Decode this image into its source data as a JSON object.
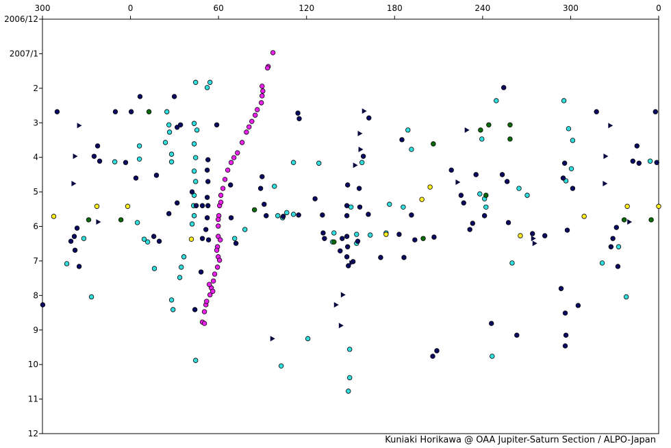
{
  "chart_data": {
    "type": "scatter",
    "footer": "Kuniaki Horikawa @ OAA Jupiter-Saturn Section / ALPO-Japan",
    "xlim": [
      -60,
      360
    ],
    "xticks": [
      {
        "value": -60,
        "label": "300"
      },
      0,
      60,
      120,
      180,
      240,
      300,
      {
        "value": 360,
        "label": "0"
      }
    ],
    "ylim": [
      0,
      12
    ],
    "y_reversed": true,
    "yticks": [
      {
        "value": 0,
        "label": "2006/12"
      },
      {
        "value": 1,
        "label": "2007/1"
      },
      2,
      3,
      4,
      5,
      6,
      7,
      8,
      9,
      10,
      11,
      12
    ],
    "grid": false,
    "series": [
      {
        "color": "#ee22ee",
        "marker": "circle",
        "x": [
          97.1,
          93.9,
          93.4,
          89.7,
          90.2,
          89.7,
          89.2,
          86.4,
          85.0,
          82.7,
          80.8,
          79.0,
          76.1,
          72.9,
          70.5,
          68.6,
          66.3,
          64.4,
          63.0,
          61.6,
          60.7,
          60.2,
          59.8,
          59.8,
          59.3,
          59.8,
          59.3,
          57.4,
          56.5,
          55.1,
          54.2,
          51.4,
          50.4,
          49.0,
          50.4,
          61.6,
          59.8,
          61.2,
          58.8,
          60.7,
          53.7,
          56.1,
          51.9
        ],
        "values": [
          0.97,
          1.37,
          1.41,
          1.94,
          2.08,
          2.22,
          2.42,
          2.62,
          2.78,
          2.96,
          3.12,
          3.27,
          3.57,
          3.87,
          4.01,
          4.15,
          4.37,
          4.64,
          4.9,
          5.1,
          5.4,
          5.69,
          5.99,
          6.29,
          6.59,
          6.88,
          7.18,
          7.38,
          7.58,
          7.78,
          7.98,
          8.27,
          8.47,
          8.77,
          8.81,
          5.3,
          5.8,
          6.39,
          6.69,
          6.98,
          7.68,
          7.88,
          8.17
        ]
      },
      {
        "color": "#33dddd",
        "marker": "circle",
        "x": [
          44.4,
          54.2,
          52.3,
          24.8,
          26.2,
          26.6,
          23.8,
          28.0,
          28.0,
          43.4,
          45.3,
          43.4,
          44.4,
          43.4,
          44.4,
          43.4,
          43.0,
          43.4,
          42.0,
          6.1,
          -10.7,
          4.7,
          9.3,
          11.7,
          16.3,
          6.1,
          -31.8,
          -43.4,
          -26.6,
          36.4,
          34.6,
          33.6,
          28.0,
          29.0,
          44.4,
          71.0,
          78.0,
          98.1,
          100.4,
          103.7,
          106.5,
          111.1,
          111.1,
          128.4,
          102.7,
          120.9,
          138.7,
          137.7,
          154.1,
          154.1,
          150.3,
          149.4,
          149.4,
          148.5,
          157.8,
          163.4,
          176.5,
          189.1,
          191.5,
          185.9,
          174.2,
          249.3,
          239.5,
          238.1,
          241.3,
          242.3,
          264.8,
          270.4,
          260.1,
          246.5,
          295.4,
          298.6,
          301.4,
          300.5,
          296.8,
          321.5,
          332.7,
          337.9,
          354.2
        ],
        "values": [
          1.83,
          1.83,
          1.98,
          2.68,
          3.06,
          3.27,
          3.57,
          3.91,
          4.13,
          3.02,
          3.21,
          3.61,
          4.01,
          4.4,
          4.7,
          5.1,
          5.4,
          5.69,
          5.93,
          3.67,
          4.13,
          5.89,
          6.37,
          6.45,
          7.22,
          4.05,
          6.35,
          7.08,
          8.04,
          6.88,
          7.18,
          7.48,
          8.13,
          8.41,
          9.88,
          6.35,
          6.09,
          4.84,
          5.69,
          5.75,
          5.6,
          5.65,
          4.15,
          4.17,
          10.04,
          9.25,
          6.19,
          6.45,
          6.23,
          6.49,
          5.44,
          9.56,
          10.38,
          10.77,
          4.15,
          6.25,
          5.36,
          3.21,
          3.77,
          5.44,
          6.19,
          2.36,
          3.47,
          5.06,
          5.2,
          5.44,
          4.9,
          5.1,
          7.06,
          9.76,
          2.36,
          3.17,
          3.51,
          4.33,
          4.68,
          7.06,
          6.59,
          8.04,
          4.11
        ]
      },
      {
        "color": "#0a0a60",
        "marker": "circle",
        "x": [
          -59.8,
          -50.0,
          -40.6,
          -38.3,
          -36.4,
          -35.0,
          -37.8,
          -22.4,
          -21.0,
          -24.8,
          -10.3,
          -3.3,
          0.5,
          6.5,
          3.7,
          17.7,
          19.6,
          15.9,
          29.9,
          31.8,
          34.1,
          26.2,
          31.8,
          42.0,
          44.8,
          49.0,
          52.8,
          52.3,
          52.8,
          52.3,
          52.8,
          52.3,
          51.4,
          53.2,
          58.8,
          49.0,
          48.1,
          43.9,
          68.2,
          68.6,
          71.9,
          88.7,
          89.7,
          91.1,
          92.5,
          114.1,
          115.0,
          114.6,
          104.1,
          125.8,
          131.3,
          132.2,
          130.8,
          148.0,
          147.5,
          147.5,
          147.5,
          148.0,
          147.5,
          148.5,
          144.3,
          142.9,
          151.7,
          154.9,
          156.3,
          155.9,
          158.7,
          162.5,
          162.1,
          170.5,
          185.0,
          183.1,
          186.4,
          191.5,
          193.8,
          206.9,
          208.8,
          206.0,
          218.7,
          225.3,
          227.1,
          233.2,
          235.5,
          231.3,
          241.3,
          254.4,
          253.4,
          257.6,
          256.7,
          246.0,
          263.3,
          274.0,
          282.4,
          295.9,
          294.9,
          301.4,
          297.7,
          293.5,
          296.3,
          296.8,
          296.3,
          305.1,
          317.6,
          328.8,
          331.2,
          327.5,
          332.2,
          342.4,
          345.2,
          357.8,
          358.7,
          346.6
        ],
        "values": [
          8.27,
          2.68,
          6.43,
          6.29,
          6.05,
          7.16,
          6.69,
          3.67,
          4.11,
          3.97,
          2.68,
          4.15,
          2.68,
          2.24,
          4.6,
          4.52,
          6.43,
          6.29,
          2.24,
          3.13,
          3.06,
          5.63,
          5.32,
          5.0,
          5.4,
          5.4,
          4.07,
          4.37,
          4.7,
          5.16,
          5.4,
          5.75,
          6.09,
          6.39,
          3.06,
          6.35,
          7.32,
          8.41,
          4.8,
          5.75,
          6.49,
          4.9,
          4.56,
          5.36,
          5.69,
          2.72,
          2.88,
          5.67,
          5.71,
          5.2,
          6.19,
          6.35,
          5.67,
          4.8,
          5.4,
          5.69,
          6.29,
          6.59,
          6.88,
          7.14,
          6.35,
          6.71,
          7.02,
          6.43,
          5.44,
          4.9,
          3.97,
          2.86,
          5.65,
          6.9,
          3.49,
          6.23,
          6.9,
          5.67,
          6.39,
          6.31,
          9.6,
          9.76,
          4.37,
          5.1,
          5.32,
          5.91,
          4.5,
          6.09,
          5.69,
          1.98,
          4.5,
          5.89,
          4.7,
          8.81,
          9.15,
          6.21,
          6.27,
          4.17,
          4.6,
          4.9,
          6.11,
          7.8,
          8.51,
          9.15,
          9.46,
          8.29,
          2.68,
          6.35,
          6.03,
          6.59,
          7.16,
          4.11,
          3.67,
          2.68,
          4.15,
          4.17
        ]
      },
      {
        "color": "#0a6a0a",
        "marker": "circle",
        "x": [
          12.6,
          -28.5,
          -6.5,
          84.5,
          138.7,
          206.4,
          199.5,
          238.6,
          244.2,
          258.7,
          258.7,
          242.3,
          336.5,
          354.9
        ],
        "values": [
          2.68,
          5.81,
          5.81,
          5.52,
          6.45,
          3.61,
          6.35,
          3.21,
          3.06,
          3.06,
          3.47,
          5.1,
          5.81,
          5.81
        ]
      },
      {
        "color": "#ffee22",
        "marker": "circle",
        "x": [
          -52.3,
          -22.9,
          -1.9,
          41.5,
          174.2,
          198.6,
          204.2,
          265.7,
          309.2,
          338.6,
          360.0
        ],
        "values": [
          5.71,
          5.42,
          5.42,
          6.37,
          6.23,
          5.22,
          4.86,
          6.27,
          5.71,
          5.42,
          5.42
        ]
      },
      {
        "color": "#0a0a40",
        "marker": "triangle",
        "x": [
          -35.0,
          -37.8,
          -38.8,
          -22.0,
          96.7,
          144.8,
          140.1,
          143.4,
          159.2,
          156.3,
          156.8,
          153.1,
          150.6,
          229.2,
          223.0,
          274.5,
          275.4,
          327.0,
          323.8,
          323.3,
          340.0
        ],
        "values": [
          3.08,
          3.97,
          4.76,
          5.87,
          9.25,
          7.98,
          8.27,
          8.87,
          2.66,
          3.31,
          3.77,
          4.23,
          7.06,
          3.21,
          4.72,
          6.35,
          6.49,
          3.08,
          3.97,
          4.76,
          5.87
        ]
      }
    ]
  }
}
